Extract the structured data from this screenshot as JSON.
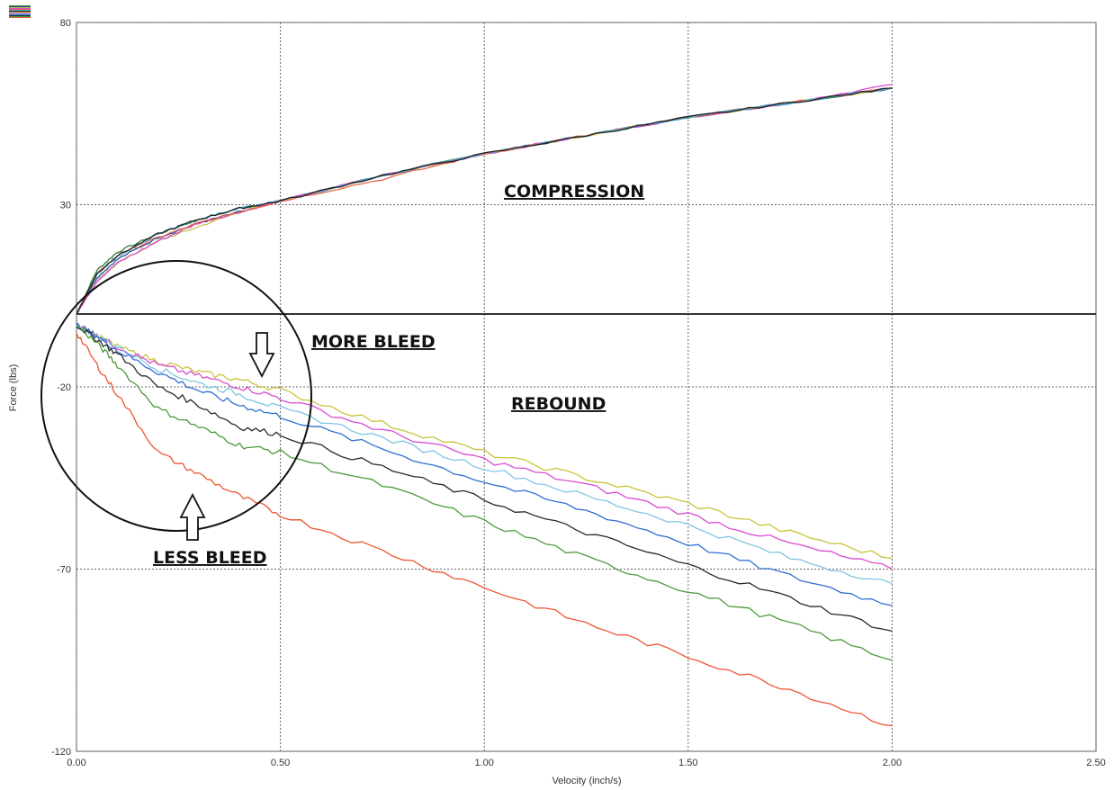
{
  "chart_data": {
    "type": "line",
    "xlabel": "Velocity (inch/s)",
    "ylabel": "Force (lbs)",
    "xlim": [
      0,
      2.5
    ],
    "ylim": [
      -120,
      80
    ],
    "x_ticks": [
      "0.00",
      "0.50",
      "1.00",
      "1.50",
      "2.00",
      "2.50"
    ],
    "y_ticks": [
      "80",
      "30",
      "-20",
      "-70",
      "-120"
    ],
    "grid": true,
    "x": [
      0.0,
      0.05,
      0.1,
      0.2,
      0.3,
      0.4,
      0.5,
      0.75,
      1.0,
      1.25,
      1.5,
      1.75,
      2.0
    ],
    "compression_series": [
      {
        "color": "#2e7d32",
        "values": [
          0,
          12,
          17,
          22,
          26,
          29,
          31,
          38,
          44,
          49,
          54,
          58,
          62
        ]
      },
      {
        "color": "#1f4fa0",
        "values": [
          0,
          10,
          15,
          21,
          25,
          28,
          31,
          38,
          44,
          49,
          54,
          58,
          62
        ]
      },
      {
        "color": "#c9c24a",
        "values": [
          0,
          9,
          14,
          20,
          24,
          28,
          31,
          38,
          44,
          49,
          54,
          58,
          62
        ]
      },
      {
        "color": "#d94ad0",
        "values": [
          0,
          9,
          14,
          20,
          25,
          28,
          31,
          38,
          44,
          49,
          54,
          58,
          63
        ]
      },
      {
        "color": "#e8674a",
        "values": [
          0,
          11,
          16,
          21,
          25,
          28,
          31,
          37,
          44,
          49,
          54,
          58,
          62
        ]
      },
      {
        "color": "#4aa0c8",
        "values": [
          0,
          11,
          16,
          22,
          26,
          29,
          31,
          38,
          44,
          49,
          54,
          58,
          62
        ]
      },
      {
        "color": "#222222",
        "values": [
          0,
          11,
          16,
          22,
          26,
          29,
          31,
          38,
          44,
          49,
          54,
          58,
          62
        ]
      }
    ],
    "rebound_series": [
      {
        "color": "#c8c43a",
        "values": [
          -3,
          -6,
          -9,
          -13,
          -16,
          -18,
          -21,
          -30,
          -38,
          -45,
          -52,
          -60,
          -67
        ]
      },
      {
        "color": "#d94ad0",
        "values": [
          -3,
          -6,
          -9,
          -14,
          -17,
          -20,
          -23,
          -32,
          -40,
          -47,
          -55,
          -63,
          -70
        ]
      },
      {
        "color": "#7fc6e0",
        "values": [
          -3,
          -6,
          -9,
          -15,
          -19,
          -22,
          -26,
          -34,
          -42,
          -50,
          -58,
          -67,
          -74
        ]
      },
      {
        "color": "#2f6fd0",
        "values": [
          -3,
          -6,
          -10,
          -16,
          -21,
          -25,
          -28,
          -37,
          -46,
          -54,
          -63,
          -72,
          -80
        ]
      },
      {
        "color": "#2a2a2a",
        "values": [
          -3,
          -7,
          -11,
          -20,
          -25,
          -31,
          -33,
          -42,
          -51,
          -60,
          -69,
          -78,
          -87
        ]
      },
      {
        "color": "#4c9a3a",
        "values": [
          -3,
          -8,
          -14,
          -26,
          -31,
          -36,
          -38,
          -47,
          -57,
          -67,
          -76,
          -85,
          -95
        ]
      },
      {
        "color": "#ee5533",
        "values": [
          -5,
          -14,
          -22,
          -38,
          -44,
          -50,
          -55,
          -65,
          -75,
          -85,
          -94,
          -103,
          -113
        ]
      }
    ],
    "zero_line": 0,
    "annotations": {
      "compression": "COMPRESSION",
      "rebound": "REBOUND",
      "more_bleed": "MORE BLEED",
      "less_bleed": "LESS BLEED"
    }
  }
}
